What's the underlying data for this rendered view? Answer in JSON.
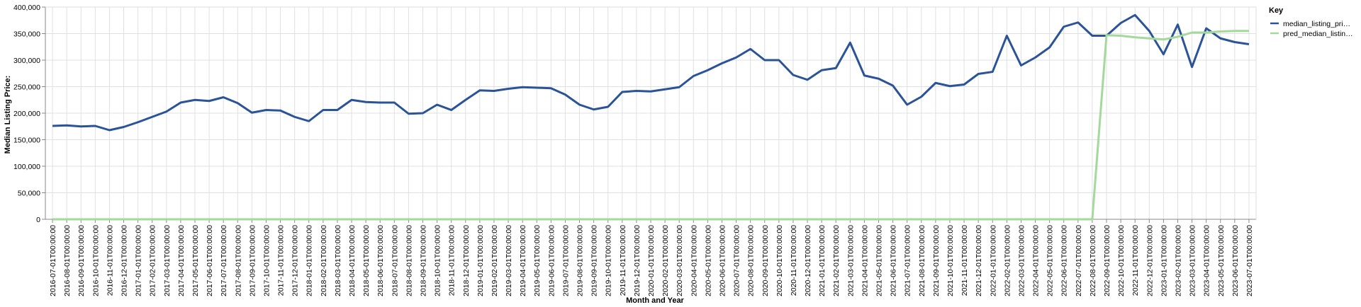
{
  "chart_data": {
    "type": "line",
    "x_label": "Month and Year",
    "y_label": "Median Listing Price:",
    "legend_title": "Key",
    "legend_position": "right",
    "grid": true,
    "categories": [
      "2016-07-01T00:00:00",
      "2016-08-01T00:00:00",
      "2016-09-01T00:00:00",
      "2016-10-01T00:00:00",
      "2016-11-01T00:00:00",
      "2016-12-01T00:00:00",
      "2017-01-01T00:00:00",
      "2017-02-01T00:00:00",
      "2017-03-01T00:00:00",
      "2017-04-01T00:00:00",
      "2017-05-01T00:00:00",
      "2017-06-01T00:00:00",
      "2017-07-01T00:00:00",
      "2017-08-01T00:00:00",
      "2017-09-01T00:00:00",
      "2017-10-01T00:00:00",
      "2017-11-01T00:00:00",
      "2017-12-01T00:00:00",
      "2018-01-01T00:00:00",
      "2018-02-01T00:00:00",
      "2018-03-01T00:00:00",
      "2018-04-01T00:00:00",
      "2018-05-01T00:00:00",
      "2018-06-01T00:00:00",
      "2018-07-01T00:00:00",
      "2018-08-01T00:00:00",
      "2018-09-01T00:00:00",
      "2018-10-01T00:00:00",
      "2018-11-01T00:00:00",
      "2018-12-01T00:00:00",
      "2019-01-01T00:00:00",
      "2019-02-01T00:00:00",
      "2019-03-01T00:00:00",
      "2019-04-01T00:00:00",
      "2019-05-01T00:00:00",
      "2019-06-01T00:00:00",
      "2019-07-01T00:00:00",
      "2019-08-01T00:00:00",
      "2019-09-01T00:00:00",
      "2019-10-01T00:00:00",
      "2019-11-01T00:00:00",
      "2019-12-01T00:00:00",
      "2020-01-01T00:00:00",
      "2020-02-01T00:00:00",
      "2020-03-01T00:00:00",
      "2020-04-01T00:00:00",
      "2020-05-01T00:00:00",
      "2020-06-01T00:00:00",
      "2020-07-01T00:00:00",
      "2020-08-01T00:00:00",
      "2020-09-01T00:00:00",
      "2020-10-01T00:00:00",
      "2020-11-01T00:00:00",
      "2020-12-01T00:00:00",
      "2021-01-01T00:00:00",
      "2021-02-01T00:00:00",
      "2021-03-01T00:00:00",
      "2021-04-01T00:00:00",
      "2021-05-01T00:00:00",
      "2021-06-01T00:00:00",
      "2021-07-01T00:00:00",
      "2021-08-01T00:00:00",
      "2021-09-01T00:00:00",
      "2021-10-01T00:00:00",
      "2021-11-01T00:00:00",
      "2021-12-01T00:00:00",
      "2022-01-01T00:00:00",
      "2022-02-01T00:00:00",
      "2022-03-01T00:00:00",
      "2022-04-01T00:00:00",
      "2022-05-01T00:00:00",
      "2022-06-01T00:00:00",
      "2022-07-01T00:00:00",
      "2022-08-01T00:00:00",
      "2022-09-01T00:00:00",
      "2022-10-01T00:00:00",
      "2022-11-01T00:00:00",
      "2022-12-01T00:00:00",
      "2023-01-01T00:00:00",
      "2023-02-01T00:00:00",
      "2023-03-01T00:00:00",
      "2023-04-01T00:00:00",
      "2023-05-01T00:00:00",
      "2023-06-01T00:00:00",
      "2023-07-01T00:00:00"
    ],
    "series": [
      {
        "name": "median_listing_pri…",
        "color": "#2a5398",
        "values": [
          176000,
          177000,
          175000,
          176000,
          168000,
          174000,
          183000,
          193000,
          203000,
          220000,
          225000,
          223000,
          230000,
          219000,
          201000,
          206000,
          205000,
          193000,
          185000,
          206000,
          206000,
          225000,
          221000,
          220000,
          220000,
          199000,
          200000,
          216000,
          206000,
          225000,
          243000,
          242000,
          246000,
          249000,
          248000,
          247000,
          235000,
          216000,
          207000,
          212000,
          240000,
          242000,
          241000,
          245000,
          249000,
          270000,
          281000,
          294000,
          305000,
          321000,
          300000,
          300000,
          272000,
          263000,
          281000,
          285000,
          333000,
          271000,
          265000,
          252000,
          216000,
          231000,
          257000,
          251000,
          254000,
          274000,
          278000,
          346000,
          290000,
          305000,
          324000,
          363000,
          371000,
          346000,
          346000,
          370000,
          385000,
          355000,
          311000,
          367000,
          287000,
          360000,
          341000,
          334000,
          330000
        ]
      },
      {
        "name": "pred_median_listin…",
        "color": "#a3d99b",
        "values": [
          0,
          0,
          0,
          0,
          0,
          0,
          0,
          0,
          0,
          0,
          0,
          0,
          0,
          0,
          0,
          0,
          0,
          0,
          0,
          0,
          0,
          0,
          0,
          0,
          0,
          0,
          0,
          0,
          0,
          0,
          0,
          0,
          0,
          0,
          0,
          0,
          0,
          0,
          0,
          0,
          0,
          0,
          0,
          0,
          0,
          0,
          0,
          0,
          0,
          0,
          0,
          0,
          0,
          0,
          0,
          0,
          0,
          0,
          0,
          0,
          0,
          0,
          0,
          0,
          0,
          0,
          0,
          0,
          0,
          0,
          0,
          0,
          0,
          0,
          347000,
          346000,
          343000,
          341000,
          339000,
          344000,
          352000,
          352000,
          354000,
          355000,
          355000
        ]
      }
    ],
    "ylim": [
      0,
      400000
    ],
    "yticks": [
      {
        "value": 0,
        "label": "0"
      },
      {
        "value": 50000,
        "label": "50,000"
      },
      {
        "value": 100000,
        "label": "100,000"
      },
      {
        "value": 150000,
        "label": "150,000"
      },
      {
        "value": 200000,
        "label": "200,000"
      },
      {
        "value": 250000,
        "label": "250,000"
      },
      {
        "value": 300000,
        "label": "300,000"
      },
      {
        "value": 350000,
        "label": "350,000"
      },
      {
        "value": 400000,
        "label": "400,000"
      }
    ]
  }
}
